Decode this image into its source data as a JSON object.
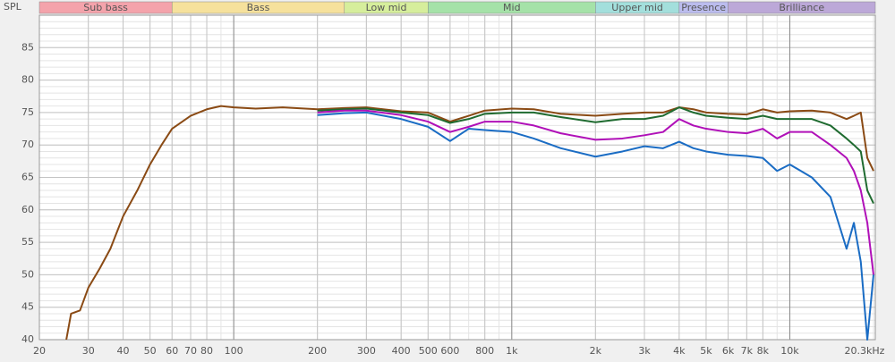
{
  "chart_data": {
    "type": "line",
    "ylabel": "SPL",
    "xscale": "log",
    "grid": true,
    "xlim": [
      20,
      20300
    ],
    "ylim": [
      40,
      90
    ],
    "xticks": [
      20,
      30,
      40,
      50,
      60,
      70,
      80,
      100,
      200,
      300,
      400,
      500,
      600,
      800,
      {
        "value": 1000,
        "label": "1k"
      },
      {
        "value": 2000,
        "label": "2k"
      },
      {
        "value": 3000,
        "label": "3k"
      },
      {
        "value": 4000,
        "label": "4k"
      },
      {
        "value": 5000,
        "label": "5k"
      },
      {
        "value": 6000,
        "label": "6k"
      },
      {
        "value": 7000,
        "label": "7k"
      },
      {
        "value": 8000,
        "label": "8k"
      },
      {
        "value": 10000,
        "label": "10k"
      },
      {
        "value": 20300,
        "label": "20.3kHz"
      }
    ],
    "yticks": [
      40,
      45,
      50,
      55,
      60,
      65,
      70,
      75,
      80,
      85
    ],
    "bands": [
      {
        "label": "Sub bass",
        "from": 20,
        "to": 60,
        "color": "#f4a3ab"
      },
      {
        "label": "Bass",
        "from": 60,
        "to": 250,
        "color": "#f6e19c"
      },
      {
        "label": "Low mid",
        "from": 250,
        "to": 500,
        "color": "#d6ee9c"
      },
      {
        "label": "Mid",
        "from": 500,
        "to": 2000,
        "color": "#a5e2a8"
      },
      {
        "label": "Upper mid",
        "from": 2000,
        "to": 4000,
        "color": "#a3dfdc"
      },
      {
        "label": "Presence",
        "from": 4000,
        "to": 6000,
        "color": "#bbbcee"
      },
      {
        "label": "Brilliance",
        "from": 6000,
        "to": 20300,
        "color": "#bca8d8"
      }
    ],
    "x": [
      25,
      26,
      28,
      30,
      33,
      36,
      40,
      45,
      50,
      55,
      60,
      70,
      80,
      90,
      100,
      120,
      150,
      200,
      250,
      300,
      400,
      500,
      600,
      700,
      800,
      1000,
      1200,
      1500,
      2000,
      2500,
      3000,
      3500,
      4000,
      4500,
      5000,
      6000,
      7000,
      8000,
      9000,
      10000,
      12000,
      14000,
      16000,
      17000,
      18000,
      19000,
      20000
    ],
    "series": [
      {
        "color": "#8a4a14",
        "values": [
          40,
          44,
          44.5,
          48,
          51,
          54,
          59,
          63,
          67,
          70,
          72.5,
          74.5,
          75.5,
          76,
          75.8,
          75.6,
          75.8,
          75.5,
          75.7,
          75.8,
          75.2,
          75,
          73.6,
          74.5,
          75.3,
          75.6,
          75.5,
          74.8,
          74.5,
          74.8,
          75,
          75,
          75.8,
          75.5,
          75,
          74.8,
          74.7,
          75.5,
          75,
          75.2,
          75.3,
          75,
          74,
          74.5,
          75,
          68,
          66
        ]
      },
      {
        "color": "#1f6b30",
        "values": [
          null,
          null,
          null,
          null,
          null,
          null,
          null,
          null,
          null,
          null,
          null,
          null,
          null,
          null,
          null,
          null,
          null,
          75.3,
          75.5,
          75.6,
          75,
          74.6,
          73.4,
          74,
          74.8,
          75,
          75,
          74.3,
          73.5,
          74,
          74,
          74.5,
          75.8,
          75,
          74.5,
          74.2,
          74,
          74.5,
          74,
          74,
          74,
          73,
          71,
          70,
          69,
          63,
          61
        ]
      },
      {
        "color": "#b010b8",
        "values": [
          null,
          null,
          null,
          null,
          null,
          null,
          null,
          null,
          null,
          null,
          null,
          null,
          null,
          null,
          null,
          null,
          null,
          75,
          75.3,
          75.3,
          74.6,
          73.6,
          72,
          72.8,
          73.6,
          73.6,
          73,
          71.8,
          70.8,
          71,
          71.5,
          72,
          74,
          73,
          72.5,
          72,
          71.8,
          72.5,
          71,
          72,
          72,
          70,
          68,
          66,
          63,
          58,
          50
        ]
      },
      {
        "color": "#1a6cc4",
        "values": [
          null,
          null,
          null,
          null,
          null,
          null,
          null,
          null,
          null,
          null,
          null,
          null,
          null,
          null,
          null,
          null,
          null,
          74.6,
          74.9,
          75,
          74,
          72.8,
          70.6,
          72.5,
          72.3,
          72,
          71,
          69.5,
          68.2,
          69,
          69.8,
          69.5,
          70.5,
          69.5,
          69,
          68.5,
          68.3,
          68,
          66,
          67,
          65,
          62,
          54,
          58,
          52,
          40,
          50
        ]
      }
    ]
  }
}
